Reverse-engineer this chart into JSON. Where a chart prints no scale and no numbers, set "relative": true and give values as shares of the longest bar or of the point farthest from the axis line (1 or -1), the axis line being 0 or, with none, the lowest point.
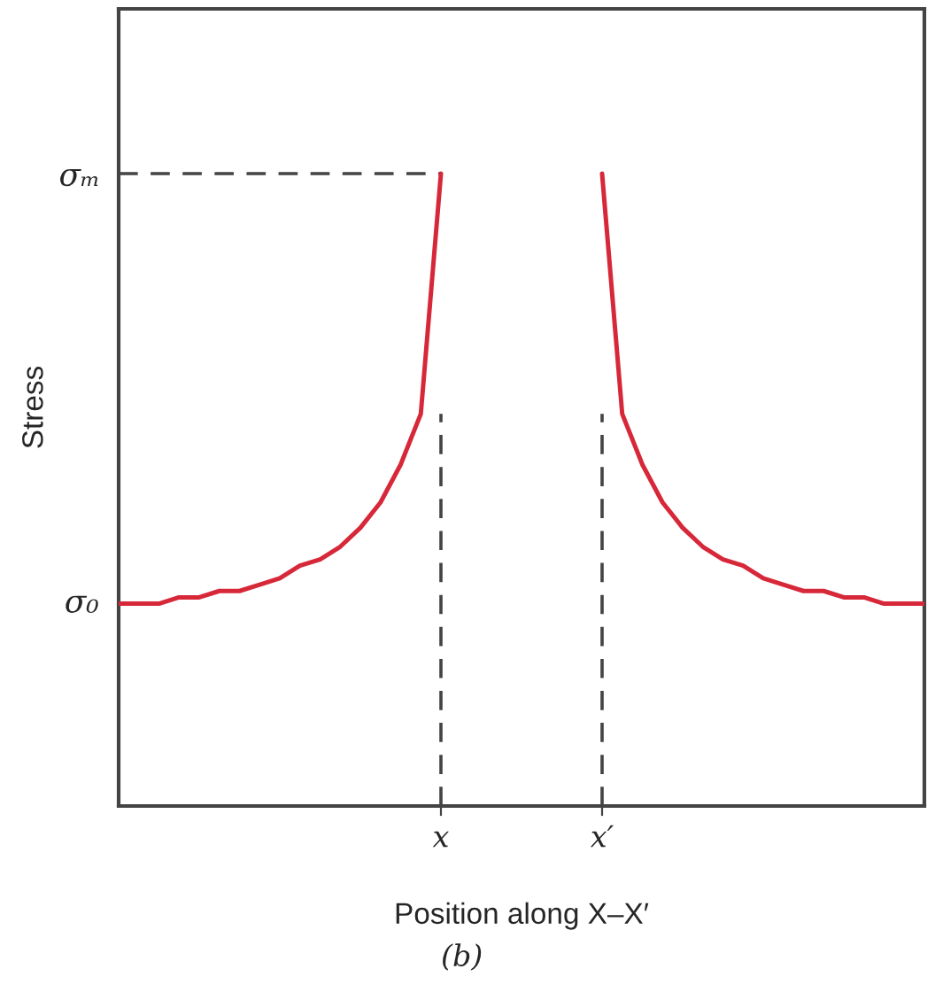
{
  "chart_data": {
    "type": "line",
    "relative": true,
    "xlabel": "Position along X–X′",
    "ylabel": "Stress",
    "categories": [
      null,
      null,
      null,
      null,
      null,
      null,
      null,
      null,
      null,
      null,
      null,
      null,
      null,
      null,
      null,
      null,
      "x",
      null,
      null,
      null,
      null,
      null,
      null,
      null,
      "x′",
      null,
      null,
      null,
      null,
      null,
      null,
      null,
      null,
      null,
      null,
      null,
      null,
      null,
      null,
      null,
      null
    ],
    "series": [
      {
        "color": "#d7283a",
        "values": [
          0.32,
          0.32,
          0.32,
          0.33,
          0.33,
          0.34,
          0.34,
          0.35,
          0.36,
          0.38,
          0.39,
          0.41,
          0.44,
          0.48,
          0.54,
          0.62,
          1.0,
          null,
          null,
          null,
          null,
          null,
          null,
          null,
          1.0,
          0.62,
          0.54,
          0.48,
          0.44,
          0.41,
          0.39,
          0.38,
          0.36,
          0.35,
          0.34,
          0.34,
          0.33,
          0.33,
          0.32,
          0.32,
          0.32
        ]
      }
    ],
    "ref_lines": [
      {
        "axis": "y",
        "value": 1.0,
        "label": "σₘ",
        "line_style": "dashed",
        "color": "#444444"
      },
      {
        "axis": "x",
        "value": "x",
        "line_style": "dashed",
        "color": "#444444"
      },
      {
        "axis": "x",
        "value": "x′",
        "line_style": "dashed",
        "color": "#444444"
      }
    ],
    "annotations": [
      "σ₀",
      "(b)"
    ],
    "grid": false,
    "legend": false,
    "line_style": "solid",
    "marker": "none"
  }
}
